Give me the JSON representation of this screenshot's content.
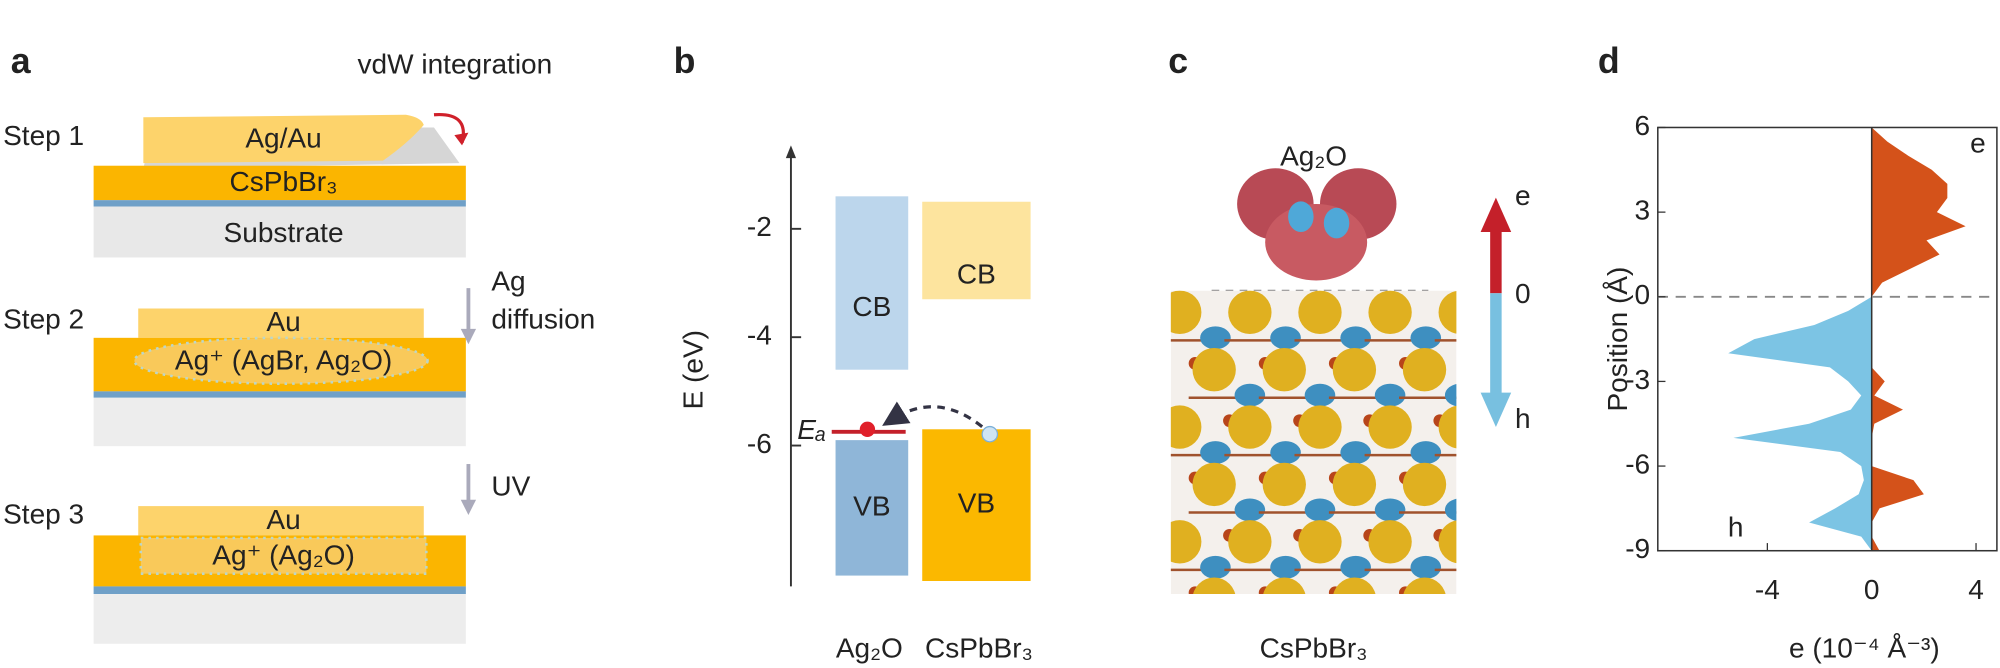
{
  "panel_a": {
    "label": "a",
    "annotation": "vdW integration",
    "steps": [
      {
        "label": "Step 1",
        "top_layer": "Ag/Au",
        "middle_layer": "CsPbBr₃",
        "bottom_layer": "Substrate"
      },
      {
        "label": "Step 2",
        "top_layer": "Au",
        "middle_layer": "Ag⁺ (AgBr, Ag₂O)"
      },
      {
        "label": "Step 3",
        "top_layer": "Au",
        "middle_layer": "Ag⁺ (Ag₂O)"
      }
    ],
    "transitions": [
      [
        "Ag",
        "diffusion"
      ],
      [
        "UV"
      ]
    ]
  },
  "panel_b": {
    "label": "b",
    "ylabel": "E (eV)",
    "ylim": [
      -8.6,
      -0.6
    ],
    "yticks": [
      -2,
      -4,
      -6
    ],
    "materials": [
      {
        "name": "Ag₂O",
        "bands": [
          {
            "name": "CB",
            "top": -1.4,
            "bottom": -4.6,
            "color": "#bcd6ec"
          },
          {
            "name": "VB",
            "top": -5.9,
            "bottom": -8.4,
            "color": "#8fb6d8"
          }
        ]
      },
      {
        "name": "CsPbBr₃",
        "bands": [
          {
            "name": "CB",
            "top": -1.5,
            "bottom": -3.3,
            "color": "#fde49e"
          },
          {
            "name": "VB",
            "top": -5.7,
            "bottom": -8.5,
            "color": "#fbb800"
          }
        ]
      }
    ],
    "level": {
      "label": "Eₐ",
      "value": -5.7
    }
  },
  "panel_c": {
    "label": "c",
    "top": "Ag₂O",
    "bottom": "CsPbBr₃",
    "arrow_labels": [
      "e",
      "0",
      "h"
    ]
  },
  "panel_d": {
    "label": "d",
    "ylabel": "Position (Å)",
    "xlabel": "e (10⁻⁴ Å⁻³)",
    "ylim": [
      -9,
      6
    ],
    "yticks": [
      6,
      3,
      0,
      -3,
      -6,
      -9
    ],
    "xlim": [
      -8.2,
      4.8
    ],
    "xticks": [
      -4,
      0,
      4
    ],
    "position": [
      6,
      5.5,
      5,
      4.5,
      4,
      3.5,
      3,
      2.5,
      2,
      1.5,
      1,
      0.5,
      0,
      -0.5,
      -1,
      -1.5,
      -2,
      -2.5,
      -3,
      -3.5,
      -4,
      -4.5,
      -5,
      -5.5,
      -6,
      -6.5,
      -7,
      -7.5,
      -8,
      -8.5,
      -9
    ],
    "series": [
      {
        "name": "e",
        "color": "#d4521a",
        "values": [
          0,
          0.6,
          1.4,
          2.3,
          2.9,
          2.9,
          2.5,
          3.6,
          2.1,
          2.6,
          1.5,
          0.4,
          0,
          0,
          0,
          0,
          0,
          0,
          0.5,
          0.1,
          1.2,
          0.1,
          0,
          0,
          0,
          1.6,
          2.0,
          0.3,
          0,
          0,
          0.3
        ]
      },
      {
        "name": "h",
        "color": "#7cc4e4",
        "values": [
          0,
          0,
          0,
          0,
          0,
          0,
          0,
          0,
          0,
          0,
          0,
          0,
          0,
          -0.9,
          -2.2,
          -4.5,
          -5.5,
          -1.6,
          -0.9,
          -0.4,
          -0.8,
          -2.4,
          -5.3,
          -1.2,
          -0.4,
          -0.3,
          -0.5,
          -1.4,
          -2.4,
          -0.4,
          0
        ]
      }
    ]
  }
}
